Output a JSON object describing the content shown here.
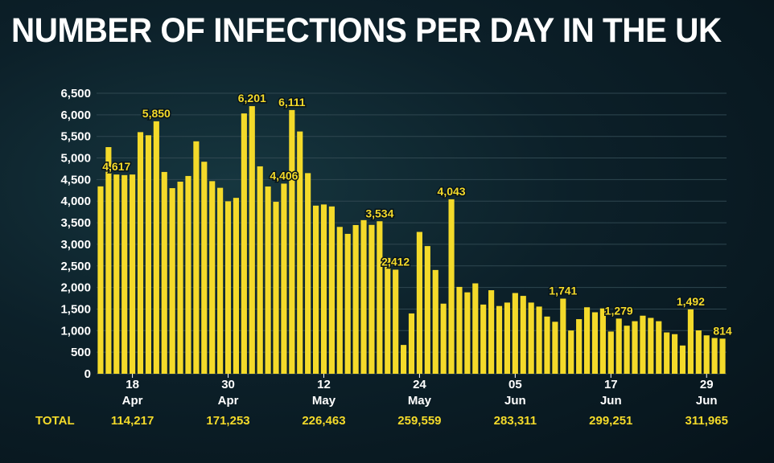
{
  "chart_data": {
    "type": "bar",
    "title": "NUMBER OF INFECTIONS PER DAY IN THE UK",
    "bar_color": "#f4da2a",
    "ylim": [
      0,
      6500
    ],
    "y_ticks": [
      {
        "value": 0,
        "label": "0"
      },
      {
        "value": 500,
        "label": "500"
      },
      {
        "value": 1000,
        "label": "1,000"
      },
      {
        "value": 1500,
        "label": "1,500"
      },
      {
        "value": 2000,
        "label": "2,000"
      },
      {
        "value": 2500,
        "label": "2,500"
      },
      {
        "value": 3000,
        "label": "3,000"
      },
      {
        "value": 3500,
        "label": "3,500"
      },
      {
        "value": 4000,
        "label": "4,000"
      },
      {
        "value": 4500,
        "label": "4,500"
      },
      {
        "value": 5000,
        "label": "5,000"
      },
      {
        "value": 5500,
        "label": "5,500"
      },
      {
        "value": 6000,
        "label": "6,000"
      },
      {
        "value": 6500,
        "label": "6,500"
      }
    ],
    "x_start": "14 Apr",
    "values": [
      4342,
      5252,
      4617,
      4603,
      4617,
      5599,
      5526,
      5850,
      4676,
      4301,
      4451,
      4583,
      5386,
      4913,
      4463,
      4309,
      3996,
      4076,
      6032,
      6201,
      4806,
      4339,
      3985,
      4406,
      6111,
      5614,
      4649,
      3896,
      3923,
      3877,
      3403,
      3242,
      3446,
      3560,
      3450,
      3534,
      2684,
      2412,
      668,
      1398,
      3287,
      2959,
      2405,
      1625,
      4043,
      2013,
      1887,
      2095,
      1604,
      1936,
      1570,
      1650,
      1871,
      1805,
      1650,
      1557,
      1326,
      1205,
      1741,
      1003,
      1266,
      1541,
      1425,
      1514,
      979,
      1279,
      1114,
      1218,
      1346,
      1295,
      1218,
      958,
      918,
      655,
      1492,
      1006,
      890,
      829,
      814
    ],
    "value_labels": [
      {
        "index": 2,
        "label": "4,617"
      },
      {
        "index": 7,
        "label": "5,850"
      },
      {
        "index": 19,
        "label": "6,201"
      },
      {
        "index": 23,
        "label": "4,406"
      },
      {
        "index": 24,
        "label": "6,111"
      },
      {
        "index": 35,
        "label": "3,534"
      },
      {
        "index": 37,
        "label": "2,412"
      },
      {
        "index": 44,
        "label": "4,043"
      },
      {
        "index": 58,
        "label": "1,741"
      },
      {
        "index": 65,
        "label": "1,279"
      },
      {
        "index": 74,
        "label": "1,492"
      },
      {
        "index": 78,
        "label": "814"
      }
    ],
    "x_ticks": [
      {
        "index": 4,
        "day": "18",
        "month": "Apr",
        "total": "114,217"
      },
      {
        "index": 16,
        "day": "30",
        "month": "Apr",
        "total": "171,253"
      },
      {
        "index": 28,
        "day": "12",
        "month": "May",
        "total": "226,463"
      },
      {
        "index": 40,
        "day": "24",
        "month": "May",
        "total": "259,559"
      },
      {
        "index": 52,
        "day": "05",
        "month": "Jun",
        "total": "283,311"
      },
      {
        "index": 64,
        "day": "17",
        "month": "Jun",
        "total": "299,251"
      },
      {
        "index": 76,
        "day": "29",
        "month": "Jun",
        "total": "311,965"
      }
    ],
    "totals_label": "TOTAL",
    "grid": true,
    "legend": "none"
  }
}
